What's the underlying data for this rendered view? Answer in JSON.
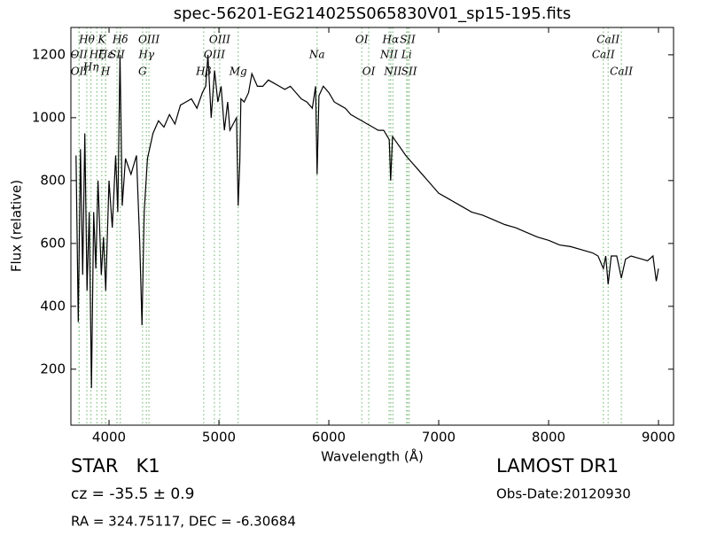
{
  "chart_data": {
    "type": "line",
    "title": "spec-56201-EG214025S065830V01_sp15-195.fits",
    "x_label": "Wavelength (Å)",
    "y_label": "Flux (relative)",
    "xlim": [
      3653,
      9137
    ],
    "ylim": [
      22,
      1287
    ],
    "xticks": [
      4000,
      5000,
      6000,
      7000,
      8000,
      9000
    ],
    "yticks": [
      200,
      400,
      600,
      800,
      1000,
      1200
    ],
    "grid": false,
    "series": [
      {
        "color": "#000000",
        "x": [
          3700,
          3720,
          3740,
          3760,
          3780,
          3800,
          3820,
          3840,
          3860,
          3880,
          3900,
          3930,
          3950,
          3970,
          4000,
          4030,
          4060,
          4080,
          4100,
          4120,
          4150,
          4200,
          4250,
          4280,
          4300,
          4320,
          4350,
          4400,
          4450,
          4500,
          4550,
          4600,
          4650,
          4700,
          4750,
          4800,
          4850,
          4880,
          4900,
          4930,
          4960,
          4990,
          5020,
          5050,
          5080,
          5100,
          5130,
          5160,
          5175,
          5190,
          5200,
          5230,
          5270,
          5300,
          5350,
          5400,
          5450,
          5500,
          5550,
          5600,
          5650,
          5700,
          5750,
          5800,
          5850,
          5880,
          5893,
          5910,
          5950,
          6000,
          6050,
          6100,
          6150,
          6200,
          6250,
          6300,
          6350,
          6400,
          6450,
          6500,
          6550,
          6563,
          6580,
          6620,
          6660,
          6700,
          6750,
          6800,
          6850,
          6900,
          6950,
          7000,
          7100,
          7200,
          7300,
          7400,
          7500,
          7600,
          7700,
          7800,
          7900,
          8000,
          8100,
          8200,
          8300,
          8400,
          8450,
          8498,
          8520,
          8542,
          8570,
          8620,
          8662,
          8700,
          8750,
          8800,
          8850,
          8900,
          8950,
          8980,
          9000
        ],
        "values": [
          880,
          350,
          900,
          500,
          950,
          450,
          700,
          140,
          700,
          520,
          800,
          500,
          620,
          450,
          800,
          650,
          880,
          700,
          1200,
          720,
          870,
          820,
          880,
          600,
          340,
          700,
          870,
          950,
          990,
          970,
          1010,
          980,
          1040,
          1050,
          1060,
          1030,
          1080,
          1100,
          1200,
          1000,
          1150,
          1050,
          1100,
          960,
          1050,
          960,
          980,
          1000,
          720,
          860,
          1060,
          1050,
          1080,
          1140,
          1100,
          1100,
          1120,
          1110,
          1100,
          1090,
          1100,
          1080,
          1060,
          1050,
          1030,
          1100,
          820,
          1070,
          1100,
          1080,
          1050,
          1040,
          1030,
          1010,
          1000,
          990,
          980,
          970,
          960,
          960,
          930,
          800,
          940,
          920,
          900,
          880,
          860,
          840,
          820,
          800,
          780,
          760,
          740,
          720,
          700,
          690,
          675,
          660,
          650,
          635,
          620,
          610,
          595,
          590,
          580,
          570,
          560,
          520,
          560,
          470,
          560,
          560,
          490,
          550,
          560,
          555,
          550,
          545,
          560,
          480,
          520
        ]
      }
    ],
    "lines": [
      {
        "label": "OII",
        "wavelength": 3727
      },
      {
        "label": "OII",
        "wavelength": 3729
      },
      {
        "label": "Hθ",
        "wavelength": 3798
      },
      {
        "label": "Hη",
        "wavelength": 3835
      },
      {
        "label": "Hζ",
        "wavelength": 3889
      },
      {
        "label": "K",
        "wavelength": 3934
      },
      {
        "label": "H",
        "wavelength": 3968
      },
      {
        "label": "Hε",
        "wavelength": 3970
      },
      {
        "label": "SII",
        "wavelength": 4072
      },
      {
        "label": "Hδ",
        "wavelength": 4102
      },
      {
        "label": "G",
        "wavelength": 4305
      },
      {
        "label": "Hγ",
        "wavelength": 4340
      },
      {
        "label": "OIII",
        "wavelength": 4363
      },
      {
        "label": "Hβ",
        "wavelength": 4861
      },
      {
        "label": "OIII",
        "wavelength": 4959
      },
      {
        "label": "OIII",
        "wavelength": 5007
      },
      {
        "label": "Mg",
        "wavelength": 5175
      },
      {
        "label": "Na",
        "wavelength": 5893
      },
      {
        "label": "OI",
        "wavelength": 6300
      },
      {
        "label": "OI",
        "wavelength": 6363
      },
      {
        "label": "NII",
        "wavelength": 6548
      },
      {
        "label": "Hα",
        "wavelength": 6563
      },
      {
        "label": "NII",
        "wavelength": 6583
      },
      {
        "label": "Li",
        "wavelength": 6708
      },
      {
        "label": "SII",
        "wavelength": 6717
      },
      {
        "label": "SII",
        "wavelength": 6731
      },
      {
        "label": "CaII",
        "wavelength": 8498
      },
      {
        "label": "CaII",
        "wavelength": 8542
      },
      {
        "label": "CaII",
        "wavelength": 8662
      }
    ],
    "object_class": "STAR   K1",
    "redshift": "cz = -35.5 ± 0.9",
    "coordinates": "RA = 324.75117, DEC = -6.30684",
    "survey": "LAMOST DR1",
    "obs_date": "Obs-Date:20120930"
  }
}
